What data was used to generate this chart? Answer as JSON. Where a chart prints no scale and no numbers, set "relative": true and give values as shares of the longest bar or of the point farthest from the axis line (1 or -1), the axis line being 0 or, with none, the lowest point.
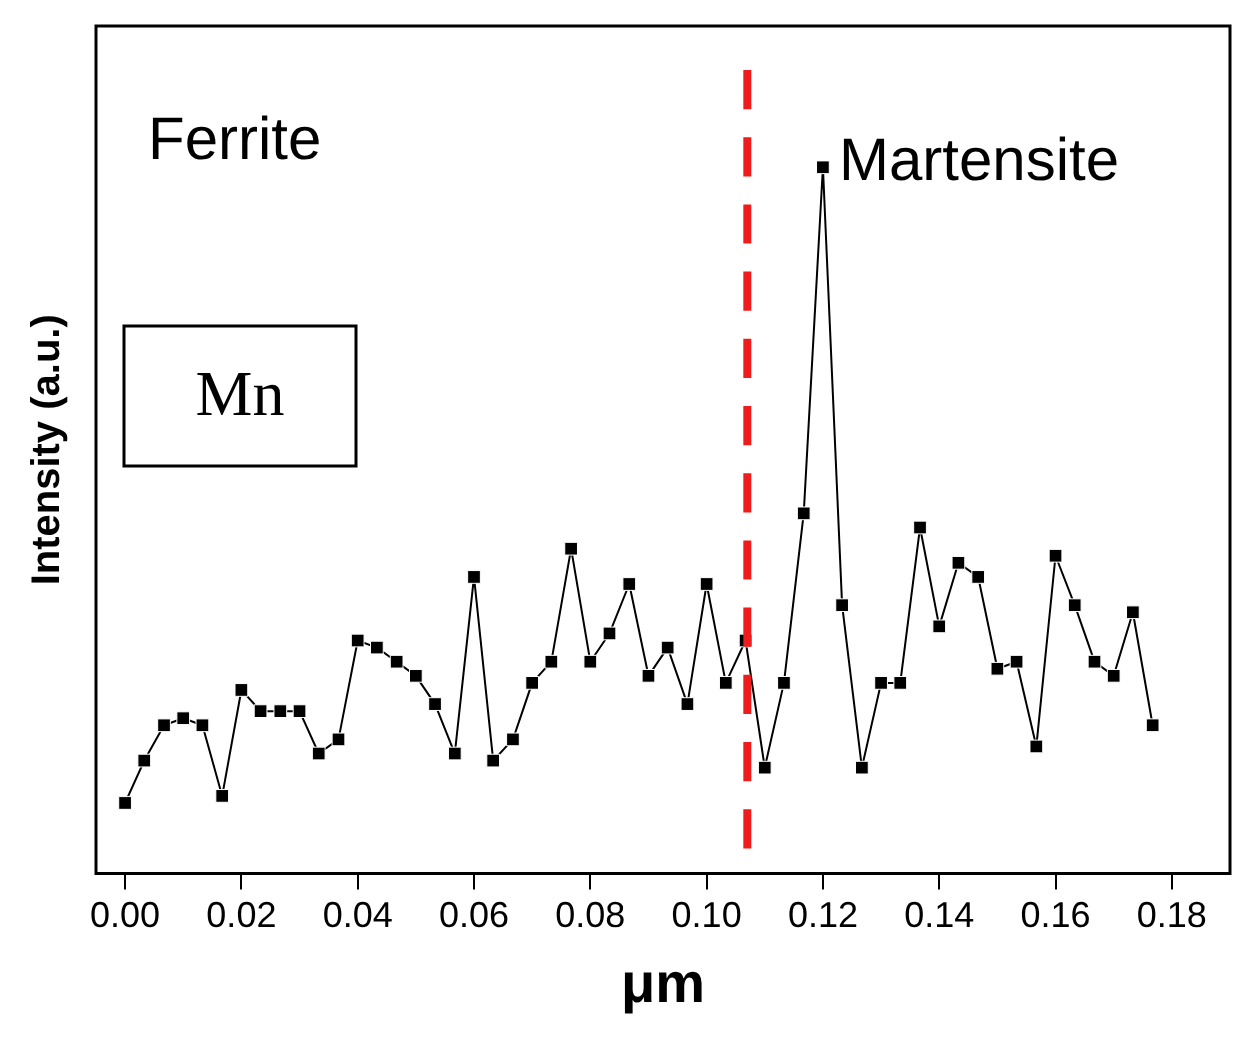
{
  "chart_data": {
    "type": "line",
    "xlabel": "μm",
    "ylabel": "Intensity (a.u.)",
    "relative": true,
    "marker": "square",
    "line_style": "solid",
    "grid": false,
    "legend": false,
    "tick_labels": "x",
    "xlim": [
      -0.005,
      0.19
    ],
    "xticks": [
      {
        "value": 0,
        "label": "0.00"
      },
      {
        "value": 0.02,
        "label": "0.02"
      },
      {
        "value": 0.04,
        "label": "0.04"
      },
      {
        "value": 0.06,
        "label": "0.06"
      },
      {
        "value": 0.08,
        "label": "0.08"
      },
      {
        "value": 0.1,
        "label": "0.10"
      },
      {
        "value": 0.12,
        "label": "0.12"
      },
      {
        "value": 0.14,
        "label": "0.14"
      },
      {
        "value": 0.16,
        "label": "0.16"
      },
      {
        "value": 0.18,
        "label": "0.18"
      }
    ],
    "x": [
      0,
      0.0033,
      0.0067,
      0.01,
      0.0133,
      0.0167,
      0.02,
      0.0233,
      0.0267,
      0.03,
      0.0333,
      0.0367,
      0.04,
      0.0433,
      0.0467,
      0.05,
      0.0533,
      0.0567,
      0.06,
      0.0633,
      0.0667,
      0.07,
      0.0733,
      0.0767,
      0.08,
      0.0833,
      0.0867,
      0.09,
      0.0933,
      0.0967,
      0.1,
      0.1033,
      0.1067,
      0.11,
      0.1133,
      0.1167,
      0.12,
      0.1233,
      0.1267,
      0.13,
      0.1333,
      0.1367,
      0.14,
      0.1433,
      0.1467,
      0.15,
      0.1533,
      0.1567,
      0.16,
      0.1633,
      0.1667,
      0.17,
      0.1733,
      0.1767
    ],
    "series": [
      {
        "color": "#000000",
        "values": [
          0.1,
          0.16,
          0.21,
          0.22,
          0.21,
          0.11,
          0.26,
          0.23,
          0.23,
          0.23,
          0.17,
          0.19,
          0.33,
          0.32,
          0.3,
          0.28,
          0.24,
          0.17,
          0.42,
          0.16,
          0.19,
          0.27,
          0.3,
          0.46,
          0.3,
          0.34,
          0.41,
          0.28,
          0.32,
          0.24,
          0.41,
          0.27,
          0.33,
          0.15,
          0.27,
          0.51,
          1.0,
          0.38,
          0.15,
          0.27,
          0.27,
          0.49,
          0.35,
          0.44,
          0.42,
          0.29,
          0.3,
          0.18,
          0.45,
          0.38,
          0.3,
          0.28,
          0.37,
          0.21
        ]
      }
    ],
    "ref_lines": [
      {
        "axis": "x",
        "value": 0.107,
        "color": "#ee1c1c",
        "line_style": "dashed"
      }
    ],
    "annotations": [
      "Ferrite",
      {
        "text": "Martensite",
        "x": 0.12,
        "y": 1.0
      },
      "Mn"
    ]
  }
}
